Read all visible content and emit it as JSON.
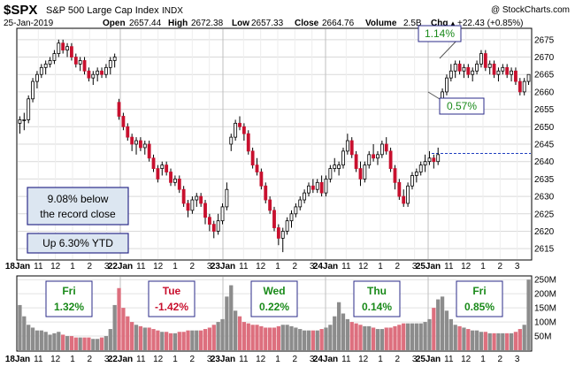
{
  "header": {
    "symbol": "$SPX",
    "name": "S&P 500 Large Cap Index",
    "exchange": "INDX",
    "watermark": "@ StockCharts.com",
    "date": "25-Jan-2019",
    "open_label": "Open",
    "open": "2657.44",
    "high_label": "High",
    "high": "2672.38",
    "low_label": "Low",
    "low": "2657.33",
    "close_label": "Close",
    "close": "2664.76",
    "volume_label": "Volume",
    "volume": "2.5B",
    "chg_label": "Chg",
    "chg": "+22.43 (+0.85%)",
    "chg_arrow": "▲"
  },
  "annotations": {
    "record": [
      "9.08% below",
      "the record close"
    ],
    "ytd": "Up 6.30% YTD",
    "gap_up": "1.14%",
    "gap_open": "0.57%"
  },
  "colors": {
    "up": "#000000",
    "down": "#c8102e",
    "vol_up": "#8c8c8c",
    "vol_down": "#dd6f7e",
    "box_border": "#2b2b8a",
    "box_fill": "#dce6f1",
    "green_text": "#1a8a1a",
    "red_text": "#c8102e",
    "prev_close_line": "#1f3fbf"
  },
  "chart_data": {
    "type": "candlestick",
    "title": "$SPX S&P 500 Large Cap Index",
    "x_tick_labels": [
      "18Jan",
      "11",
      "12",
      "1",
      "2",
      "3",
      "22Jan",
      "11",
      "12",
      "1",
      "2",
      "3",
      "23Jan",
      "11",
      "12",
      "1",
      "2",
      "3",
      "24Jan",
      "11",
      "12",
      "1",
      "2",
      "3",
      "25Jan",
      "11",
      "12",
      "1",
      "2",
      "3"
    ],
    "x_bold_labels": [
      "18Jan",
      "22Jan",
      "23Jan",
      "24Jan",
      "25Jan"
    ],
    "ylim": [
      2612,
      2678
    ],
    "y_ticks": [
      2615,
      2620,
      2625,
      2630,
      2635,
      2640,
      2645,
      2650,
      2655,
      2660,
      2665,
      2670,
      2675
    ],
    "prev_close": 2642.33,
    "volume_ylim": [
      0,
      260
    ],
    "volume_ticks": [
      "50M",
      "100M",
      "150M",
      "200M",
      "250M"
    ],
    "volume_tick_values": [
      50,
      100,
      150,
      200,
      250
    ],
    "days": [
      {
        "label": "Fri",
        "change": "1.32%",
        "tone": "up"
      },
      {
        "label": "Tue",
        "change": "-1.42%",
        "tone": "down"
      },
      {
        "label": "Wed",
        "change": "0.22%",
        "tone": "up"
      },
      {
        "label": "Thu",
        "change": "0.14%",
        "tone": "up"
      },
      {
        "label": "Fri",
        "change": "0.85%",
        "tone": "up"
      }
    ],
    "candles": [
      [
        2651,
        2653,
        2648,
        2652,
        160
      ],
      [
        2652,
        2654,
        2649,
        2652,
        120
      ],
      [
        2652,
        2659,
        2651,
        2658,
        90
      ],
      [
        2658,
        2664,
        2657,
        2663,
        80
      ],
      [
        2663,
        2666,
        2661,
        2665,
        70
      ],
      [
        2665,
        2668,
        2664,
        2667,
        70
      ],
      [
        2667,
        2669,
        2665,
        2668,
        65
      ],
      [
        2668,
        2670,
        2667,
        2669,
        55
      ],
      [
        2669,
        2672,
        2668,
        2671,
        60
      ],
      [
        2671,
        2675,
        2670,
        2674,
        65
      ],
      [
        2674,
        2675,
        2671,
        2672,
        55
      ],
      [
        2672,
        2674,
        2670,
        2673,
        50
      ],
      [
        2673,
        2674,
        2669,
        2670,
        50
      ],
      [
        2670,
        2671,
        2667,
        2668,
        45
      ],
      [
        2668,
        2670,
        2666,
        2669,
        45
      ],
      [
        2669,
        2670,
        2665,
        2666,
        45
      ],
      [
        2666,
        2667,
        2663,
        2664,
        45
      ],
      [
        2664,
        2666,
        2662,
        2665,
        40
      ],
      [
        2665,
        2667,
        2663,
        2666,
        40
      ],
      [
        2666,
        2667,
        2664,
        2665,
        45
      ],
      [
        2665,
        2668,
        2664,
        2667,
        50
      ],
      [
        2667,
        2670,
        2665,
        2669,
        75
      ],
      [
        2669,
        2671,
        2667,
        2670,
        160
      ],
      [
        2657,
        2658,
        2652,
        2653,
        220
      ],
      [
        2653,
        2654,
        2649,
        2650,
        150
      ],
      [
        2650,
        2651,
        2646,
        2647,
        120
      ],
      [
        2647,
        2648,
        2643,
        2645,
        100
      ],
      [
        2645,
        2647,
        2642,
        2646,
        90
      ],
      [
        2646,
        2647,
        2643,
        2644,
        85
      ],
      [
        2644,
        2646,
        2642,
        2645,
        80
      ],
      [
        2645,
        2646,
        2640,
        2641,
        80
      ],
      [
        2641,
        2642,
        2637,
        2638,
        75
      ],
      [
        2638,
        2639,
        2634,
        2635,
        70
      ],
      [
        2638,
        2640,
        2636,
        2639,
        65
      ],
      [
        2639,
        2640,
        2636,
        2637,
        65
      ],
      [
        2637,
        2638,
        2633,
        2634,
        60
      ],
      [
        2634,
        2636,
        2633,
        2635,
        60
      ],
      [
        2635,
        2636,
        2631,
        2632,
        65
      ],
      [
        2632,
        2633,
        2627,
        2628,
        65
      ],
      [
        2628,
        2629,
        2624,
        2626,
        70
      ],
      [
        2626,
        2630,
        2625,
        2629,
        70
      ],
      [
        2629,
        2631,
        2627,
        2630,
        70
      ],
      [
        2630,
        2631,
        2627,
        2628,
        70
      ],
      [
        2628,
        2629,
        2622,
        2624,
        75
      ],
      [
        2624,
        2625,
        2620,
        2622,
        80
      ],
      [
        2622,
        2623,
        2618,
        2620,
        90
      ],
      [
        2620,
        2625,
        2619,
        2623,
        100
      ],
      [
        2623,
        2628,
        2622,
        2627,
        110
      ],
      [
        2627,
        2634,
        2626,
        2632,
        190
      ],
      [
        2645,
        2648,
        2643,
        2647,
        230
      ],
      [
        2647,
        2652,
        2646,
        2651,
        140
      ],
      [
        2651,
        2653,
        2649,
        2650,
        120
      ],
      [
        2650,
        2651,
        2646,
        2648,
        100
      ],
      [
        2648,
        2649,
        2642,
        2643,
        95
      ],
      [
        2643,
        2644,
        2638,
        2639,
        90
      ],
      [
        2639,
        2641,
        2636,
        2637,
        90
      ],
      [
        2637,
        2638,
        2632,
        2633,
        85
      ],
      [
        2633,
        2634,
        2628,
        2629,
        80
      ],
      [
        2629,
        2630,
        2625,
        2626,
        80
      ],
      [
        2626,
        2627,
        2620,
        2621,
        80
      ],
      [
        2621,
        2622,
        2616,
        2618,
        85
      ],
      [
        2618,
        2621,
        2614,
        2620,
        90
      ],
      [
        2620,
        2624,
        2619,
        2623,
        90
      ],
      [
        2623,
        2626,
        2621,
        2625,
        85
      ],
      [
        2625,
        2628,
        2624,
        2627,
        80
      ],
      [
        2627,
        2630,
        2626,
        2629,
        75
      ],
      [
        2629,
        2632,
        2628,
        2631,
        70
      ],
      [
        2631,
        2634,
        2630,
        2633,
        70
      ],
      [
        2633,
        2635,
        2631,
        2632,
        70
      ],
      [
        2632,
        2635,
        2631,
        2634,
        70
      ],
      [
        2634,
        2636,
        2630,
        2631,
        75
      ],
      [
        2631,
        2636,
        2630,
        2635,
        80
      ],
      [
        2635,
        2639,
        2634,
        2638,
        90
      ],
      [
        2638,
        2641,
        2637,
        2639,
        120
      ],
      [
        2638,
        2640,
        2636,
        2639,
        170
      ],
      [
        2639,
        2644,
        2638,
        2643,
        130
      ],
      [
        2643,
        2648,
        2642,
        2646,
        110
      ],
      [
        2646,
        2647,
        2641,
        2642,
        100
      ],
      [
        2642,
        2643,
        2637,
        2638,
        95
      ],
      [
        2638,
        2640,
        2633,
        2635,
        90
      ],
      [
        2635,
        2640,
        2634,
        2639,
        85
      ],
      [
        2639,
        2643,
        2638,
        2642,
        85
      ],
      [
        2642,
        2645,
        2640,
        2641,
        80
      ],
      [
        2641,
        2643,
        2639,
        2642,
        75
      ],
      [
        2642,
        2646,
        2641,
        2645,
        75
      ],
      [
        2645,
        2647,
        2642,
        2643,
        80
      ],
      [
        2643,
        2644,
        2637,
        2638,
        80
      ],
      [
        2638,
        2639,
        2632,
        2634,
        85
      ],
      [
        2634,
        2635,
        2629,
        2630,
        90
      ],
      [
        2630,
        2632,
        2627,
        2628,
        95
      ],
      [
        2628,
        2634,
        2627,
        2633,
        95
      ],
      [
        2633,
        2637,
        2632,
        2636,
        95
      ],
      [
        2636,
        2638,
        2634,
        2637,
        95
      ],
      [
        2637,
        2640,
        2636,
        2639,
        95
      ],
      [
        2639,
        2642,
        2637,
        2640,
        100
      ],
      [
        2640,
        2643,
        2639,
        2641,
        110
      ],
      [
        2641,
        2642,
        2638,
        2640,
        150
      ],
      [
        2640,
        2644,
        2639,
        2642,
        180
      ],
      [
        2657,
        2661,
        2656,
        2660,
        190
      ],
      [
        2660,
        2665,
        2659,
        2664,
        140
      ],
      [
        2664,
        2668,
        2663,
        2666,
        110
      ],
      [
        2666,
        2669,
        2664,
        2668,
        90
      ],
      [
        2668,
        2669,
        2665,
        2666,
        85
      ],
      [
        2666,
        2668,
        2664,
        2667,
        80
      ],
      [
        2667,
        2668,
        2664,
        2665,
        75
      ],
      [
        2665,
        2667,
        2663,
        2666,
        70
      ],
      [
        2666,
        2669,
        2665,
        2668,
        70
      ],
      [
        2668,
        2672,
        2667,
        2671,
        65
      ],
      [
        2671,
        2672,
        2666,
        2667,
        65
      ],
      [
        2667,
        2669,
        2665,
        2668,
        60
      ],
      [
        2668,
        2669,
        2664,
        2665,
        60
      ],
      [
        2665,
        2667,
        2663,
        2666,
        60
      ],
      [
        2666,
        2668,
        2665,
        2667,
        60
      ],
      [
        2667,
        2668,
        2664,
        2665,
        60
      ],
      [
        2665,
        2667,
        2663,
        2666,
        60
      ],
      [
        2666,
        2667,
        2662,
        2663,
        65
      ],
      [
        2663,
        2664,
        2659,
        2660,
        75
      ],
      [
        2660,
        2664,
        2659,
        2663,
        90
      ],
      [
        2663,
        2665,
        2662,
        2665,
        250
      ]
    ]
  }
}
